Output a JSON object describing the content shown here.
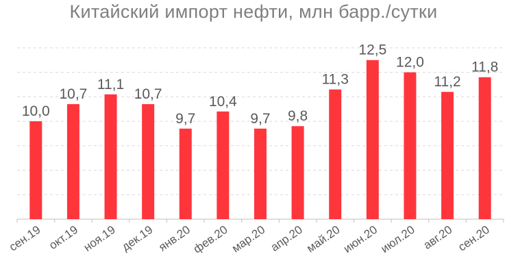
{
  "chart_data": {
    "type": "bar",
    "title": "Китайский импорт нефти, млн барр./сутки",
    "categories": [
      "сен.19",
      "окт.19",
      "ноя.19",
      "дек.19",
      "янв.20",
      "фев.20",
      "мар.20",
      "апр.20",
      "май.20",
      "июн.20",
      "июл.20",
      "авг.20",
      "сен.20"
    ],
    "values": [
      10.0,
      10.7,
      11.1,
      10.7,
      9.7,
      10.4,
      9.7,
      9.8,
      11.3,
      12.5,
      12.0,
      11.2,
      11.8
    ],
    "value_labels": [
      "10,0",
      "10,7",
      "11,1",
      "10,7",
      "9,7",
      "10,4",
      "9,7",
      "9,8",
      "11,3",
      "12,5",
      "12,0",
      "11,2",
      "11,8"
    ],
    "ylim": [
      6.0,
      13.5
    ],
    "grid": true,
    "bar_color": "#ff353c",
    "xlabel": "",
    "ylabel": ""
  }
}
